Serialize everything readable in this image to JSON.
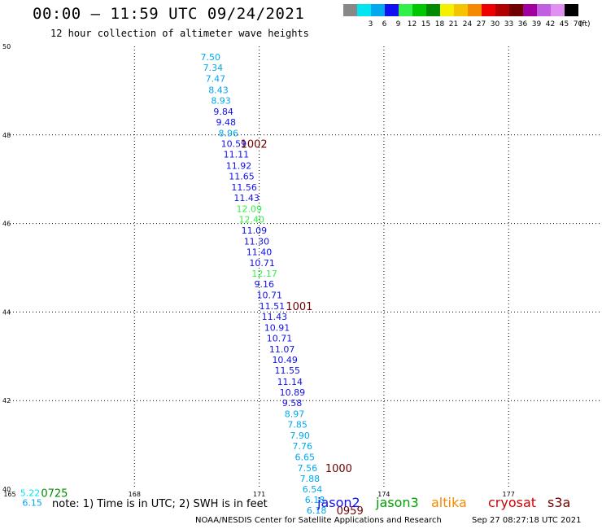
{
  "header": {
    "title": "00:00 – 11:59 UTC 09/24/2021",
    "subtitle": "12 hour collection of altimeter wave heights"
  },
  "legend": {
    "unit": "(ft)",
    "items": [
      {
        "label": "",
        "color": "#888888"
      },
      {
        "label": "3",
        "color": "#00e5f0"
      },
      {
        "label": "6",
        "color": "#00a8f0"
      },
      {
        "label": "9",
        "color": "#1010f0"
      },
      {
        "label": "12",
        "color": "#33ef4a"
      },
      {
        "label": "15",
        "color": "#00c800"
      },
      {
        "label": "18",
        "color": "#008a00"
      },
      {
        "label": "21",
        "color": "#f5f000"
      },
      {
        "label": "24",
        "color": "#f5c400"
      },
      {
        "label": "27",
        "color": "#f58a00"
      },
      {
        "label": "30",
        "color": "#ee0000"
      },
      {
        "label": "33",
        "color": "#b00000"
      },
      {
        "label": "36",
        "color": "#700000"
      },
      {
        "label": "39",
        "color": "#a000a0"
      },
      {
        "label": "42",
        "color": "#c060e0"
      },
      {
        "label": "45",
        "color": "#e090f0"
      },
      {
        "label": "70",
        "color": "#000000"
      }
    ]
  },
  "axes": {
    "lon_ticks": [
      "165",
      "168",
      "171",
      "174",
      "177"
    ],
    "lat_ticks": [
      "40",
      "42",
      "44",
      "46",
      "48",
      "50"
    ]
  },
  "observations": [
    {
      "lon": 169.59,
      "lat": 49.76,
      "swh": "7.50",
      "color": "#00a8f0"
    },
    {
      "lon": 169.65,
      "lat": 49.52,
      "swh": "7.34",
      "color": "#00a8f0"
    },
    {
      "lon": 169.71,
      "lat": 49.27,
      "swh": "7.47",
      "color": "#00a8f0"
    },
    {
      "lon": 169.78,
      "lat": 49.02,
      "swh": "8.43",
      "color": "#00a8f0"
    },
    {
      "lon": 169.84,
      "lat": 48.78,
      "swh": "8.93",
      "color": "#00a8f0"
    },
    {
      "lon": 169.9,
      "lat": 48.53,
      "swh": "9.84",
      "color": "#1010f0"
    },
    {
      "lon": 169.96,
      "lat": 48.29,
      "swh": "9.48",
      "color": "#1010f0"
    },
    {
      "lon": 170.02,
      "lat": 48.04,
      "swh": "8.96",
      "color": "#00a8f0"
    },
    {
      "lon": 170.08,
      "lat": 47.8,
      "swh": "10.59",
      "color": "#1010f0"
    },
    {
      "lon": 170.14,
      "lat": 47.56,
      "swh": "11.11",
      "color": "#1010f0"
    },
    {
      "lon": 170.2,
      "lat": 47.31,
      "swh": "11.92",
      "color": "#1010f0"
    },
    {
      "lon": 170.27,
      "lat": 47.07,
      "swh": "11.65",
      "color": "#1010f0"
    },
    {
      "lon": 170.33,
      "lat": 46.82,
      "swh": "11.56",
      "color": "#1010f0"
    },
    {
      "lon": 170.39,
      "lat": 46.58,
      "swh": "11.43",
      "color": "#1010f0"
    },
    {
      "lon": 170.45,
      "lat": 46.33,
      "swh": "12.09",
      "color": "#33ef4a"
    },
    {
      "lon": 170.51,
      "lat": 46.09,
      "swh": "12.40",
      "color": "#33ef4a"
    },
    {
      "lon": 170.57,
      "lat": 45.85,
      "swh": "11.09",
      "color": "#1010f0"
    },
    {
      "lon": 170.63,
      "lat": 45.6,
      "swh": "11.30",
      "color": "#1010f0"
    },
    {
      "lon": 170.69,
      "lat": 45.36,
      "swh": "11.40",
      "color": "#1010f0"
    },
    {
      "lon": 170.76,
      "lat": 45.11,
      "swh": "10.71",
      "color": "#1010f0"
    },
    {
      "lon": 170.82,
      "lat": 44.87,
      "swh": "12.17",
      "color": "#33ef4a"
    },
    {
      "lon": 170.88,
      "lat": 44.63,
      "swh": "9.16",
      "color": "#1010f0"
    },
    {
      "lon": 170.94,
      "lat": 44.38,
      "swh": "10.71",
      "color": "#1010f0"
    },
    {
      "lon": 171.0,
      "lat": 44.14,
      "swh": "11.51",
      "color": "#1010f0"
    },
    {
      "lon": 171.06,
      "lat": 43.9,
      "swh": "11.43",
      "color": "#1010f0"
    },
    {
      "lon": 171.12,
      "lat": 43.65,
      "swh": "10.91",
      "color": "#1010f0"
    },
    {
      "lon": 171.18,
      "lat": 43.41,
      "swh": "10.71",
      "color": "#1010f0"
    },
    {
      "lon": 171.24,
      "lat": 43.16,
      "swh": "11.07",
      "color": "#1010f0"
    },
    {
      "lon": 171.31,
      "lat": 42.92,
      "swh": "10.49",
      "color": "#1010f0"
    },
    {
      "lon": 171.37,
      "lat": 42.68,
      "swh": "11.55",
      "color": "#1010f0"
    },
    {
      "lon": 171.43,
      "lat": 42.43,
      "swh": "11.14",
      "color": "#1010f0"
    },
    {
      "lon": 171.49,
      "lat": 42.19,
      "swh": "10.89",
      "color": "#1010f0"
    },
    {
      "lon": 171.55,
      "lat": 41.95,
      "swh": "9.58",
      "color": "#1010f0"
    },
    {
      "lon": 171.61,
      "lat": 41.7,
      "swh": "8.97",
      "color": "#00a8f0"
    },
    {
      "lon": 171.68,
      "lat": 41.46,
      "swh": "7.85",
      "color": "#00a8f0"
    },
    {
      "lon": 171.74,
      "lat": 41.21,
      "swh": "7.90",
      "color": "#00a8f0"
    },
    {
      "lon": 171.8,
      "lat": 40.97,
      "swh": "7.76",
      "color": "#00a8f0"
    },
    {
      "lon": 171.86,
      "lat": 40.73,
      "swh": "6.65",
      "color": "#00a8f0"
    },
    {
      "lon": 171.92,
      "lat": 40.48,
      "swh": "7.56",
      "color": "#00a8f0"
    },
    {
      "lon": 171.98,
      "lat": 40.24,
      "swh": "7.88",
      "color": "#00a8f0"
    },
    {
      "lon": 172.04,
      "lat": 40.0,
      "swh": "6.54",
      "color": "#00a8f0"
    },
    {
      "lon": 172.1,
      "lat": 39.76,
      "swh": "6.18",
      "color": "#00a8f0"
    },
    {
      "lon": 172.14,
      "lat": 39.52,
      "swh": "6.18",
      "color": "#00a8f0"
    },
    {
      "lon": 165.25,
      "lat": 39.92,
      "swh": "5.22",
      "color": "#00e5f0"
    },
    {
      "lon": 165.3,
      "lat": 39.7,
      "swh": "6.15",
      "color": "#00a8f0"
    }
  ],
  "pass_times": [
    {
      "lon": 170.55,
      "lat": 47.8,
      "text": "1002",
      "color": "#700000"
    },
    {
      "lon": 171.64,
      "lat": 44.14,
      "text": "1001",
      "color": "#700000"
    },
    {
      "lon": 172.59,
      "lat": 40.48,
      "text": "1000",
      "color": "#700000"
    },
    {
      "lon": 172.86,
      "lat": 39.52,
      "text": "0959",
      "color": "#700000"
    },
    {
      "lon": 165.75,
      "lat": 39.92,
      "text": "0725",
      "color": "#008a00"
    }
  ],
  "notes": "note: 1) Time is in UTC; 2) SWH is in feet",
  "satellites": [
    {
      "name": "jason2",
      "color": "#1010f0"
    },
    {
      "name": "jason3",
      "color": "#00a000"
    },
    {
      "name": "altika",
      "color": "#f58a00"
    },
    {
      "name": "cryosat",
      "color": "#d00000"
    },
    {
      "name": "s3a",
      "color": "#700000"
    }
  ],
  "footer": {
    "credit": "NOAA/NESDIS Center for Satellite Applications and Research",
    "timestamp": "Sep 27 08:27:18 UTC 2021"
  }
}
